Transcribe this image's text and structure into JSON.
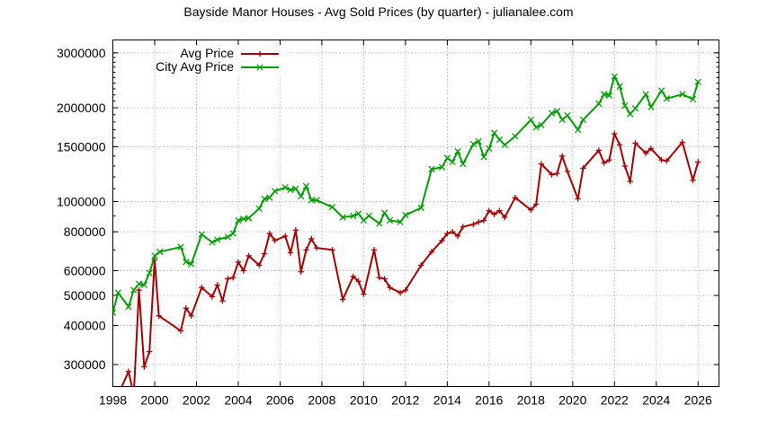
{
  "chart_data": {
    "type": "line",
    "title": "Bayside Manor Houses - Avg Sold Prices (by quarter) - julianalee.com",
    "xlabel": "",
    "ylabel": "",
    "y_scale": "log",
    "xlim": [
      1998,
      2027
    ],
    "ylim": [
      255000,
      3300000
    ],
    "xticks": [
      "1998",
      "2000",
      "2002",
      "2004",
      "2006",
      "2008",
      "2010",
      "2012",
      "2014",
      "2016",
      "2018",
      "2020",
      "2022",
      "2024",
      "2026"
    ],
    "yticks": [
      "300000",
      "400000",
      "500000",
      "600000",
      "800000",
      "1000000",
      "1500000",
      "2000000",
      "3000000"
    ],
    "grid": true,
    "legend_position": "top-left",
    "series": [
      {
        "name": "Avg Price",
        "color": "#aa0000",
        "marker": "plus",
        "points": [
          [
            1998.0,
            220000
          ],
          [
            1998.75,
            285000
          ],
          [
            1999.0,
            240000
          ],
          [
            1999.25,
            520000
          ],
          [
            1999.5,
            295000
          ],
          [
            1999.75,
            330000
          ],
          [
            2000.0,
            650000
          ],
          [
            2000.2,
            430000
          ],
          [
            2001.25,
            385000
          ],
          [
            2001.5,
            455000
          ],
          [
            2001.75,
            430000
          ],
          [
            2002.25,
            530000
          ],
          [
            2002.75,
            495000
          ],
          [
            2003.0,
            540000
          ],
          [
            2003.25,
            480000
          ],
          [
            2003.5,
            565000
          ],
          [
            2003.75,
            570000
          ],
          [
            2004.0,
            640000
          ],
          [
            2004.25,
            600000
          ],
          [
            2004.5,
            670000
          ],
          [
            2005.0,
            625000
          ],
          [
            2005.25,
            680000
          ],
          [
            2005.5,
            790000
          ],
          [
            2005.75,
            750000
          ],
          [
            2006.25,
            775000
          ],
          [
            2006.5,
            685000
          ],
          [
            2006.75,
            810000
          ],
          [
            2007.0,
            595000
          ],
          [
            2007.25,
            700000
          ],
          [
            2007.5,
            760000
          ],
          [
            2007.75,
            710000
          ],
          [
            2008.5,
            700000
          ],
          [
            2009.0,
            485000
          ],
          [
            2009.5,
            575000
          ],
          [
            2009.75,
            555000
          ],
          [
            2010.0,
            505000
          ],
          [
            2010.5,
            700000
          ],
          [
            2010.75,
            570000
          ],
          [
            2011.0,
            565000
          ],
          [
            2011.25,
            530000
          ],
          [
            2011.75,
            510000
          ],
          [
            2012.0,
            520000
          ],
          [
            2012.75,
            625000
          ],
          [
            2013.25,
            690000
          ],
          [
            2013.75,
            750000
          ],
          [
            2014.0,
            790000
          ],
          [
            2014.25,
            800000
          ],
          [
            2014.5,
            775000
          ],
          [
            2014.75,
            830000
          ],
          [
            2015.25,
            845000
          ],
          [
            2015.5,
            860000
          ],
          [
            2015.75,
            870000
          ],
          [
            2016.0,
            935000
          ],
          [
            2016.25,
            910000
          ],
          [
            2016.5,
            935000
          ],
          [
            2016.75,
            890000
          ],
          [
            2017.25,
            1030000
          ],
          [
            2018.0,
            940000
          ],
          [
            2018.25,
            980000
          ],
          [
            2018.5,
            1320000
          ],
          [
            2019.0,
            1220000
          ],
          [
            2019.25,
            1230000
          ],
          [
            2019.5,
            1400000
          ],
          [
            2019.75,
            1250000
          ],
          [
            2020.25,
            1020000
          ],
          [
            2020.5,
            1280000
          ],
          [
            2021.25,
            1460000
          ],
          [
            2021.5,
            1330000
          ],
          [
            2021.75,
            1360000
          ],
          [
            2022.0,
            1650000
          ],
          [
            2022.25,
            1520000
          ],
          [
            2022.5,
            1300000
          ],
          [
            2022.75,
            1160000
          ],
          [
            2023.0,
            1540000
          ],
          [
            2023.5,
            1430000
          ],
          [
            2023.75,
            1480000
          ],
          [
            2024.25,
            1360000
          ],
          [
            2024.5,
            1350000
          ],
          [
            2025.25,
            1550000
          ],
          [
            2025.75,
            1170000
          ],
          [
            2026.0,
            1340000
          ]
        ]
      },
      {
        "name": "City Avg Price",
        "color": "#00a000",
        "marker": "cross",
        "points": [
          [
            1998.0,
            440000
          ],
          [
            1998.25,
            510000
          ],
          [
            1998.75,
            460000
          ],
          [
            1999.0,
            520000
          ],
          [
            1999.25,
            545000
          ],
          [
            1999.5,
            540000
          ],
          [
            1999.75,
            590000
          ],
          [
            2000.0,
            670000
          ],
          [
            2000.25,
            690000
          ],
          [
            2001.25,
            715000
          ],
          [
            2001.5,
            640000
          ],
          [
            2001.75,
            630000
          ],
          [
            2002.25,
            785000
          ],
          [
            2002.75,
            740000
          ],
          [
            2003.0,
            755000
          ],
          [
            2003.5,
            770000
          ],
          [
            2003.75,
            790000
          ],
          [
            2004.0,
            870000
          ],
          [
            2004.25,
            880000
          ],
          [
            2004.5,
            885000
          ],
          [
            2005.0,
            950000
          ],
          [
            2005.25,
            1020000
          ],
          [
            2005.5,
            1030000
          ],
          [
            2005.75,
            1080000
          ],
          [
            2006.25,
            1110000
          ],
          [
            2006.5,
            1090000
          ],
          [
            2006.75,
            1100000
          ],
          [
            2007.0,
            1040000
          ],
          [
            2007.25,
            1120000
          ],
          [
            2007.5,
            1010000
          ],
          [
            2007.75,
            1010000
          ],
          [
            2008.5,
            960000
          ],
          [
            2009.0,
            890000
          ],
          [
            2009.5,
            900000
          ],
          [
            2009.75,
            915000
          ],
          [
            2010.0,
            870000
          ],
          [
            2010.25,
            900000
          ],
          [
            2010.75,
            850000
          ],
          [
            2011.0,
            920000
          ],
          [
            2011.25,
            870000
          ],
          [
            2011.75,
            860000
          ],
          [
            2012.0,
            905000
          ],
          [
            2012.75,
            955000
          ],
          [
            2013.25,
            1270000
          ],
          [
            2013.75,
            1290000
          ],
          [
            2014.0,
            1380000
          ],
          [
            2014.25,
            1340000
          ],
          [
            2014.5,
            1450000
          ],
          [
            2014.75,
            1320000
          ],
          [
            2015.25,
            1530000
          ],
          [
            2015.5,
            1560000
          ],
          [
            2015.75,
            1390000
          ],
          [
            2016.0,
            1480000
          ],
          [
            2016.25,
            1660000
          ],
          [
            2016.5,
            1580000
          ],
          [
            2016.75,
            1520000
          ],
          [
            2017.25,
            1620000
          ],
          [
            2018.0,
            1830000
          ],
          [
            2018.25,
            1730000
          ],
          [
            2018.5,
            1760000
          ],
          [
            2019.0,
            1920000
          ],
          [
            2019.25,
            1950000
          ],
          [
            2019.5,
            1830000
          ],
          [
            2019.75,
            1890000
          ],
          [
            2020.25,
            1700000
          ],
          [
            2020.5,
            1830000
          ],
          [
            2021.25,
            2060000
          ],
          [
            2021.5,
            2210000
          ],
          [
            2021.75,
            2190000
          ],
          [
            2022.0,
            2520000
          ],
          [
            2022.25,
            2340000
          ],
          [
            2022.5,
            2030000
          ],
          [
            2022.75,
            1910000
          ],
          [
            2023.0,
            1990000
          ],
          [
            2023.5,
            2210000
          ],
          [
            2023.75,
            2010000
          ],
          [
            2024.25,
            2270000
          ],
          [
            2024.5,
            2140000
          ],
          [
            2025.25,
            2210000
          ],
          [
            2025.75,
            2130000
          ],
          [
            2026.0,
            2420000
          ]
        ]
      }
    ]
  }
}
